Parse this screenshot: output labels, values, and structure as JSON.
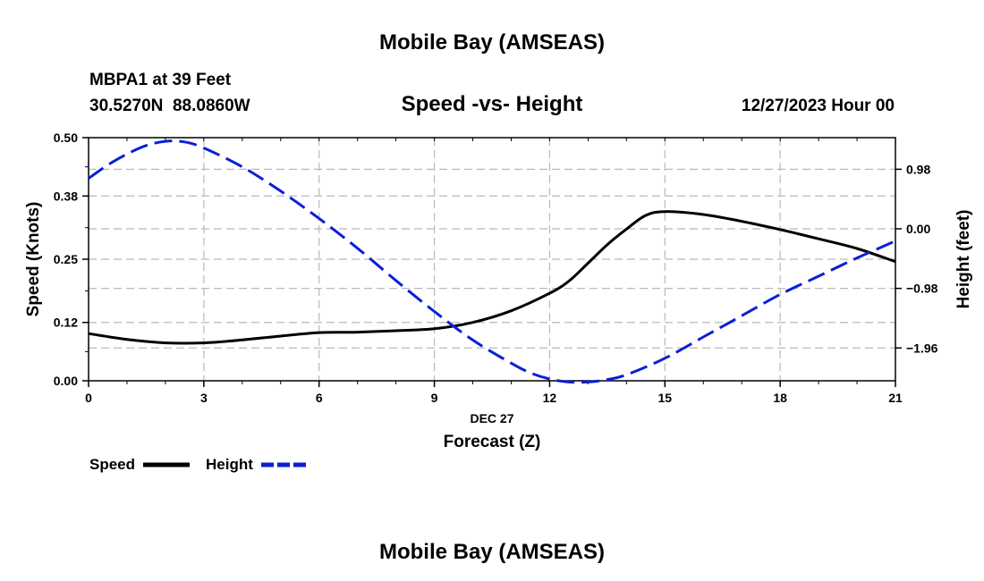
{
  "page": {
    "title": "Mobile Bay (AMSEAS)",
    "footer_title": "Mobile Bay (AMSEAS)"
  },
  "station": {
    "name_line": "MBPA1 at 39 Feet",
    "coords_line": "30.5270N  88.0860W",
    "date_line": "12/27/2023 Hour 00"
  },
  "chart_data": {
    "type": "line",
    "title": "Speed -vs- Height",
    "xlabel": "Forecast (Z)",
    "xlabel_date": "DEC 27",
    "ylabel": "Speed (Knots)",
    "y2label": "Height (feet)",
    "xlim": [
      0,
      21
    ],
    "ylim": [
      0,
      0.5
    ],
    "y2lim": [
      -2.5,
      1.5
    ],
    "x_ticks": [
      0,
      3,
      6,
      9,
      12,
      15,
      18,
      21
    ],
    "y_ticks": [
      0.0,
      0.12,
      0.25,
      0.38,
      0.5
    ],
    "y_tick_labels": [
      "0.00",
      "0.12",
      "0.25",
      "0.38",
      "0.50"
    ],
    "y2_ticks": [
      0.98,
      0.0,
      -0.98,
      -1.96
    ],
    "y2_tick_labels": [
      "0.98",
      "0.00",
      "−0.98",
      "−1.96"
    ],
    "grid": true,
    "series": [
      {
        "name": "Speed",
        "axis": "left",
        "color": "#000000",
        "dash": "solid",
        "x": [
          0,
          1,
          2,
          3,
          4,
          5,
          6,
          7,
          8,
          9,
          10,
          11,
          12,
          12.5,
          13,
          13.5,
          14,
          14.5,
          15,
          16,
          17,
          18,
          19,
          20,
          21
        ],
        "values": [
          0.097,
          0.085,
          0.078,
          0.078,
          0.084,
          0.092,
          0.099,
          0.1,
          0.103,
          0.107,
          0.12,
          0.144,
          0.18,
          0.205,
          0.242,
          0.28,
          0.312,
          0.34,
          0.348,
          0.342,
          0.328,
          0.311,
          0.292,
          0.272,
          0.245
        ]
      },
      {
        "name": "Height",
        "axis": "right",
        "color": "#0a1fd6",
        "dash": "dashed",
        "x": [
          0,
          0.5,
          1,
          1.5,
          2,
          2.5,
          3,
          4,
          5,
          6,
          7,
          8,
          9,
          10,
          11,
          11.5,
          12,
          12.5,
          13,
          13.5,
          14,
          15,
          16,
          17,
          18,
          19,
          20,
          21
        ],
        "values": [
          0.83,
          1.05,
          1.23,
          1.37,
          1.44,
          1.43,
          1.33,
          1.02,
          0.62,
          0.17,
          -0.32,
          -0.85,
          -1.36,
          -1.83,
          -2.21,
          -2.37,
          -2.47,
          -2.52,
          -2.52,
          -2.48,
          -2.4,
          -2.13,
          -1.78,
          -1.43,
          -1.08,
          -0.78,
          -0.48,
          -0.2
        ]
      }
    ],
    "legend": {
      "placement": "bottom-left",
      "items": [
        {
          "label": "Speed",
          "color": "#000000",
          "dash": "solid"
        },
        {
          "label": "Height",
          "color": "#0a1fd6",
          "dash": "dashed"
        }
      ]
    }
  }
}
